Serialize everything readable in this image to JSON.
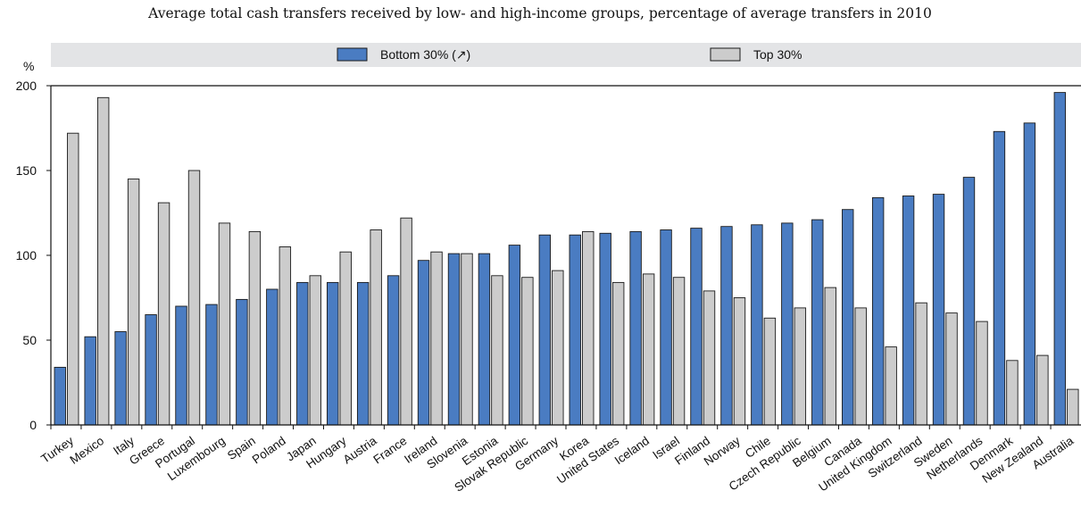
{
  "chart_data": {
    "type": "bar",
    "title": "Average total cash transfers received by low- and high-income groups, percentage of average transfers in 2010",
    "ylabel": "%",
    "ylim": [
      0,
      200
    ],
    "yticks": [
      0,
      50,
      100,
      150,
      200
    ],
    "grid": false,
    "legend_position": "top",
    "categories": [
      "Turkey",
      "Mexico",
      "Italy",
      "Greece",
      "Portugal",
      "Luxembourg",
      "Spain",
      "Poland",
      "Japan",
      "Hungary",
      "Austria",
      "France",
      "Ireland",
      "Slovenia",
      "Estonia",
      "Slovak Republic",
      "Germany",
      "Korea",
      "United States",
      "Iceland",
      "Israel",
      "Finland",
      "Norway",
      "Chile",
      "Czech Republic",
      "Belgium",
      "Canada",
      "United Kingdom",
      "Switzerland",
      "Sweden",
      "Netherlands",
      "Denmark",
      "New Zealand",
      "Australia"
    ],
    "series": [
      {
        "name": "Bottom 30% (↗)",
        "color": "#4a7cc2",
        "values": [
          34,
          52,
          55,
          65,
          70,
          71,
          74,
          80,
          84,
          84,
          84,
          88,
          97,
          101,
          101,
          106,
          112,
          112,
          113,
          114,
          115,
          116,
          117,
          118,
          119,
          121,
          127,
          134,
          135,
          136,
          146,
          173,
          178,
          196
        ]
      },
      {
        "name": "Top 30%",
        "color": "#cccccc",
        "values": [
          172,
          193,
          145,
          131,
          150,
          119,
          114,
          105,
          88,
          102,
          115,
          122,
          102,
          101,
          88,
          87,
          91,
          114,
          84,
          89,
          87,
          79,
          75,
          63,
          69,
          81,
          69,
          46,
          72,
          66,
          61,
          38,
          41,
          21
        ]
      }
    ]
  }
}
